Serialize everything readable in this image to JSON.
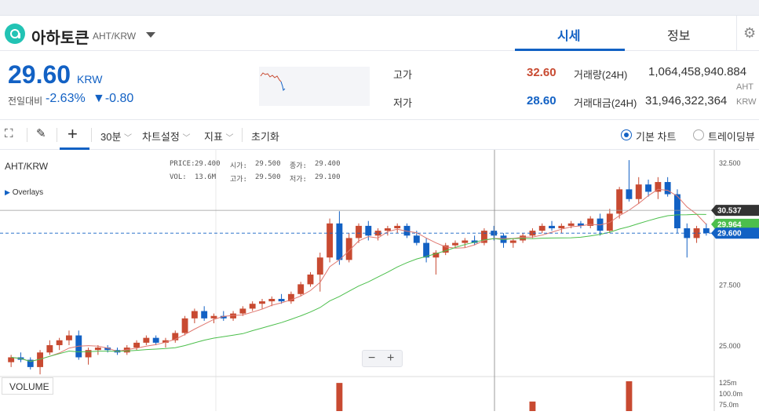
{
  "header": {
    "coin_name": "아하토큰",
    "pair": "AHT/KRW",
    "tabs": [
      "시세",
      "정보"
    ],
    "settings_icon": "gear-icon"
  },
  "summary": {
    "price": "29.60",
    "price_unit": "KRW",
    "change_label": "전일대비",
    "change_rate": "-2.63%",
    "change_amount": "▼-0.80",
    "high_label": "고가",
    "high_value": "32.60",
    "low_label": "저가",
    "low_value": "28.60",
    "volume_label": "거래량(24H)",
    "volume_value": "1,064,458,940.884",
    "volume_unit": "AHT",
    "amount_label": "거래대금(24H)",
    "amount_value": "31,946,322,364",
    "amount_unit": "KRW"
  },
  "toolbar": {
    "interval": "30분",
    "chart_settings": "차트설정",
    "indicators": "지표",
    "reset": "초기화",
    "basic_chart": "기본 차트",
    "trading_view": "트레이딩뷰"
  },
  "chart": {
    "pair_label": "AHT/KRW",
    "overlays_label": "Overlays",
    "legend": {
      "price_label": "PRICE:",
      "price": "29.400",
      "vol_label": "VOL:",
      "vol": "13.6M",
      "open_label": "시가:",
      "open": "29.500",
      "high_label": "고가:",
      "high": "29.500",
      "close_label": "종가:",
      "close": "29.400",
      "low_label": "저가:",
      "low": "29.100"
    },
    "volume_label": "VOLUME",
    "y_ticks": [
      "32.500",
      "27.500",
      "25.000"
    ],
    "vol_ticks": [
      "125m",
      "100.0m",
      "75.0m"
    ],
    "crosshair_price": "30.537",
    "ma_price": "29.964",
    "last_price": "29.600",
    "up_color": "#c84a31",
    "down_color": "#1261c4"
  },
  "chart_data": {
    "type": "candlestick",
    "ylim": [
      24.0,
      32.7
    ],
    "candles": [
      [
        24.3,
        24.6,
        24.1,
        24.5
      ],
      [
        24.5,
        24.7,
        24.3,
        24.4
      ],
      [
        24.4,
        24.5,
        24.0,
        24.1
      ],
      [
        24.1,
        24.8,
        23.8,
        24.7
      ],
      [
        24.7,
        25.2,
        24.6,
        25.0
      ],
      [
        25.0,
        25.3,
        24.8,
        25.2
      ],
      [
        25.2,
        25.6,
        25.0,
        25.4
      ],
      [
        25.4,
        25.6,
        24.4,
        24.5
      ],
      [
        24.5,
        24.9,
        24.2,
        24.8
      ],
      [
        24.8,
        25.0,
        24.6,
        24.9
      ],
      [
        24.9,
        25.0,
        24.7,
        24.8
      ],
      [
        24.8,
        24.9,
        24.6,
        24.7
      ],
      [
        24.7,
        25.0,
        24.6,
        24.9
      ],
      [
        24.9,
        25.2,
        24.8,
        25.1
      ],
      [
        25.1,
        25.4,
        25.0,
        25.3
      ],
      [
        25.3,
        25.4,
        25.0,
        25.1
      ],
      [
        25.1,
        25.3,
        24.9,
        25.2
      ],
      [
        25.2,
        25.6,
        25.1,
        25.5
      ],
      [
        25.5,
        26.2,
        25.4,
        26.1
      ],
      [
        26.1,
        26.5,
        25.9,
        26.4
      ],
      [
        26.4,
        26.6,
        26.0,
        26.1
      ],
      [
        26.1,
        26.3,
        25.9,
        26.2
      ],
      [
        26.2,
        26.4,
        26.0,
        26.1
      ],
      [
        26.1,
        26.4,
        26.0,
        26.3
      ],
      [
        26.3,
        26.6,
        26.2,
        26.5
      ],
      [
        26.5,
        26.8,
        26.4,
        26.7
      ],
      [
        26.7,
        26.9,
        26.5,
        26.8
      ],
      [
        26.8,
        27.0,
        26.6,
        26.9
      ],
      [
        26.9,
        27.1,
        26.7,
        26.8
      ],
      [
        26.8,
        27.2,
        26.7,
        27.1
      ],
      [
        27.1,
        27.6,
        27.0,
        27.5
      ],
      [
        27.5,
        28.0,
        27.4,
        27.9
      ],
      [
        27.9,
        28.8,
        27.2,
        28.6
      ],
      [
        28.6,
        30.2,
        28.4,
        30.0
      ],
      [
        30.0,
        30.5,
        28.3,
        28.5
      ],
      [
        28.5,
        29.6,
        28.4,
        29.4
      ],
      [
        29.4,
        30.0,
        29.2,
        29.9
      ],
      [
        29.9,
        30.1,
        29.3,
        29.5
      ],
      [
        29.5,
        29.8,
        29.3,
        29.7
      ],
      [
        29.7,
        29.9,
        29.5,
        29.8
      ],
      [
        29.8,
        30.0,
        29.6,
        29.9
      ],
      [
        29.9,
        30.0,
        29.4,
        29.5
      ],
      [
        29.5,
        29.7,
        29.1,
        29.2
      ],
      [
        29.2,
        29.4,
        28.4,
        28.6
      ],
      [
        28.6,
        28.9,
        27.9,
        28.8
      ],
      [
        28.8,
        29.2,
        28.7,
        29.1
      ],
      [
        29.1,
        29.3,
        29.0,
        29.2
      ],
      [
        29.2,
        29.4,
        29.0,
        29.3
      ],
      [
        29.3,
        29.5,
        29.1,
        29.2
      ],
      [
        29.2,
        29.8,
        29.1,
        29.7
      ],
      [
        29.7,
        29.9,
        29.3,
        29.5
      ],
      [
        29.5,
        29.6,
        29.0,
        29.2
      ],
      [
        29.2,
        29.4,
        29.0,
        29.3
      ],
      [
        29.3,
        29.6,
        29.2,
        29.5
      ],
      [
        29.5,
        29.8,
        29.4,
        29.7
      ],
      [
        29.7,
        30.0,
        29.6,
        29.9
      ],
      [
        29.9,
        30.1,
        29.7,
        29.8
      ],
      [
        29.8,
        30.0,
        29.6,
        29.9
      ],
      [
        29.9,
        30.1,
        29.8,
        30.0
      ],
      [
        30.0,
        30.1,
        29.8,
        29.9
      ],
      [
        29.9,
        30.3,
        29.8,
        30.2
      ],
      [
        30.2,
        30.4,
        29.5,
        29.7
      ],
      [
        29.7,
        30.6,
        29.6,
        30.4
      ],
      [
        30.4,
        31.5,
        30.2,
        31.4
      ],
      [
        31.4,
        32.6,
        30.9,
        31.0
      ],
      [
        31.0,
        31.9,
        30.8,
        31.6
      ],
      [
        31.6,
        31.8,
        31.1,
        31.3
      ],
      [
        31.3,
        31.9,
        31.0,
        31.7
      ],
      [
        31.7,
        31.9,
        31.1,
        31.2
      ],
      [
        31.2,
        31.4,
        29.6,
        29.8
      ],
      [
        29.8,
        30.0,
        28.6,
        29.4
      ],
      [
        29.4,
        29.9,
        29.2,
        29.8
      ],
      [
        29.8,
        30.0,
        29.5,
        29.6
      ]
    ],
    "volume_spikes": [
      [
        34,
        118
      ],
      [
        54,
        40
      ],
      [
        64,
        125
      ]
    ]
  }
}
